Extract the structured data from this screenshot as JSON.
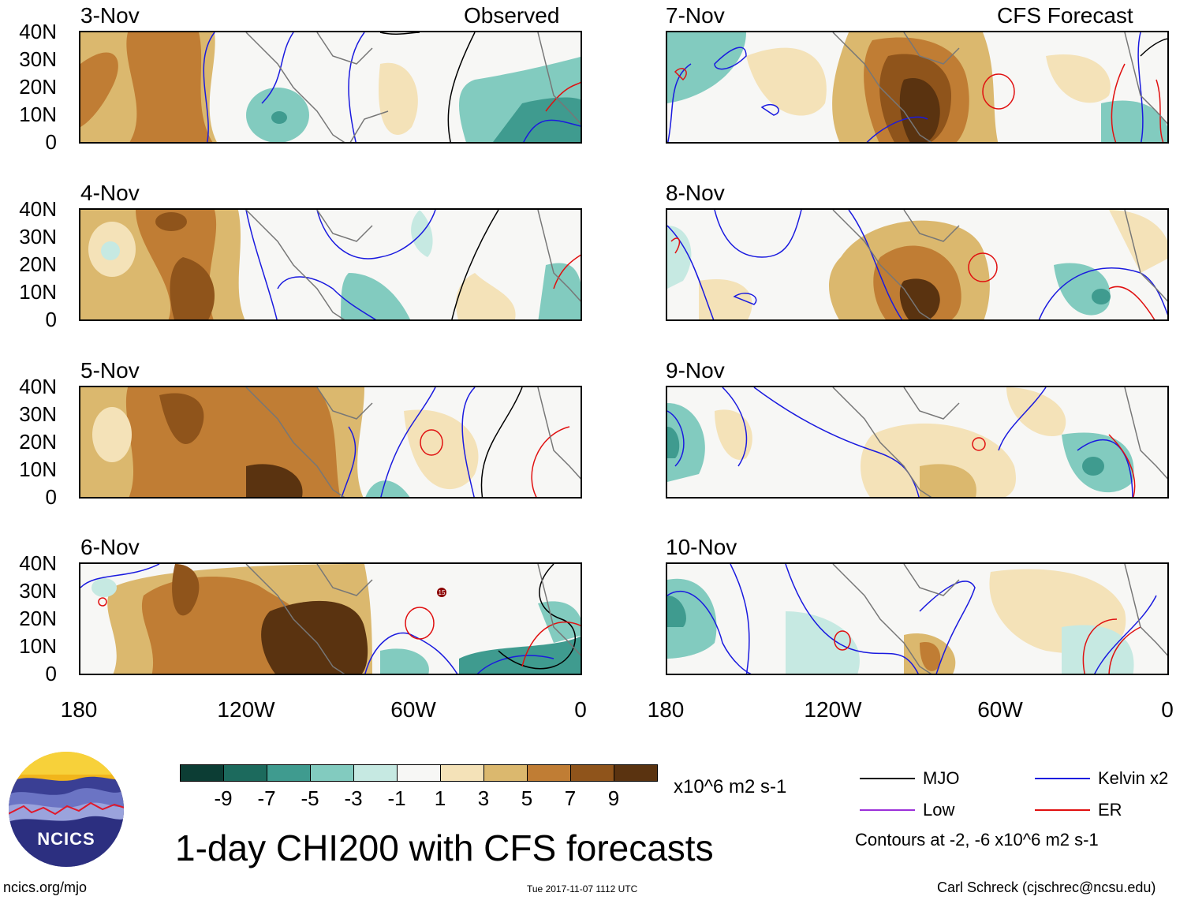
{
  "header": {
    "left_title": "Observed",
    "right_title": "CFS Forecast"
  },
  "panels": {
    "left": [
      "3-Nov",
      "4-Nov",
      "5-Nov",
      "6-Nov"
    ],
    "right": [
      "7-Nov",
      "8-Nov",
      "9-Nov",
      "10-Nov"
    ]
  },
  "axes": {
    "lat_ticks": [
      "40N",
      "30N",
      "20N",
      "10N",
      "0"
    ],
    "lon_ticks": [
      "180",
      "120W",
      "60W",
      "0"
    ]
  },
  "storm_label": "15",
  "colorbar": {
    "colors": [
      "#0c3d34",
      "#1c6a5d",
      "#3f9b8f",
      "#82cbbf",
      "#c6e9e2",
      "#f7f7f5",
      "#f4e2b8",
      "#dbb86e",
      "#c07d34",
      "#8f541b",
      "#5a3310"
    ],
    "ticks": [
      "-9",
      "-7",
      "-5",
      "-3",
      "-1",
      "1",
      "3",
      "5",
      "7",
      "9"
    ],
    "units": "x10^6 m2 s-1"
  },
  "legend": {
    "mjo": {
      "label": "MJO",
      "color": "#000000"
    },
    "kelvin": {
      "label": "Kelvin x2",
      "color": "#1a1adf"
    },
    "low": {
      "label": "Low",
      "color": "#9b30d9"
    },
    "er": {
      "label": "ER",
      "color": "#e01010"
    },
    "contours_note": "Contours at -2, -6 x10^6 m2 s-1"
  },
  "logo": {
    "text": "NCICS"
  },
  "main_title": "1-day CHI200 with CFS forecasts",
  "footer": {
    "left": "ncics.org/mjo",
    "center": "Tue 2017-11-07 1112 UTC",
    "right": "Carl Schreck (cjschrec@ncsu.edu)"
  }
}
